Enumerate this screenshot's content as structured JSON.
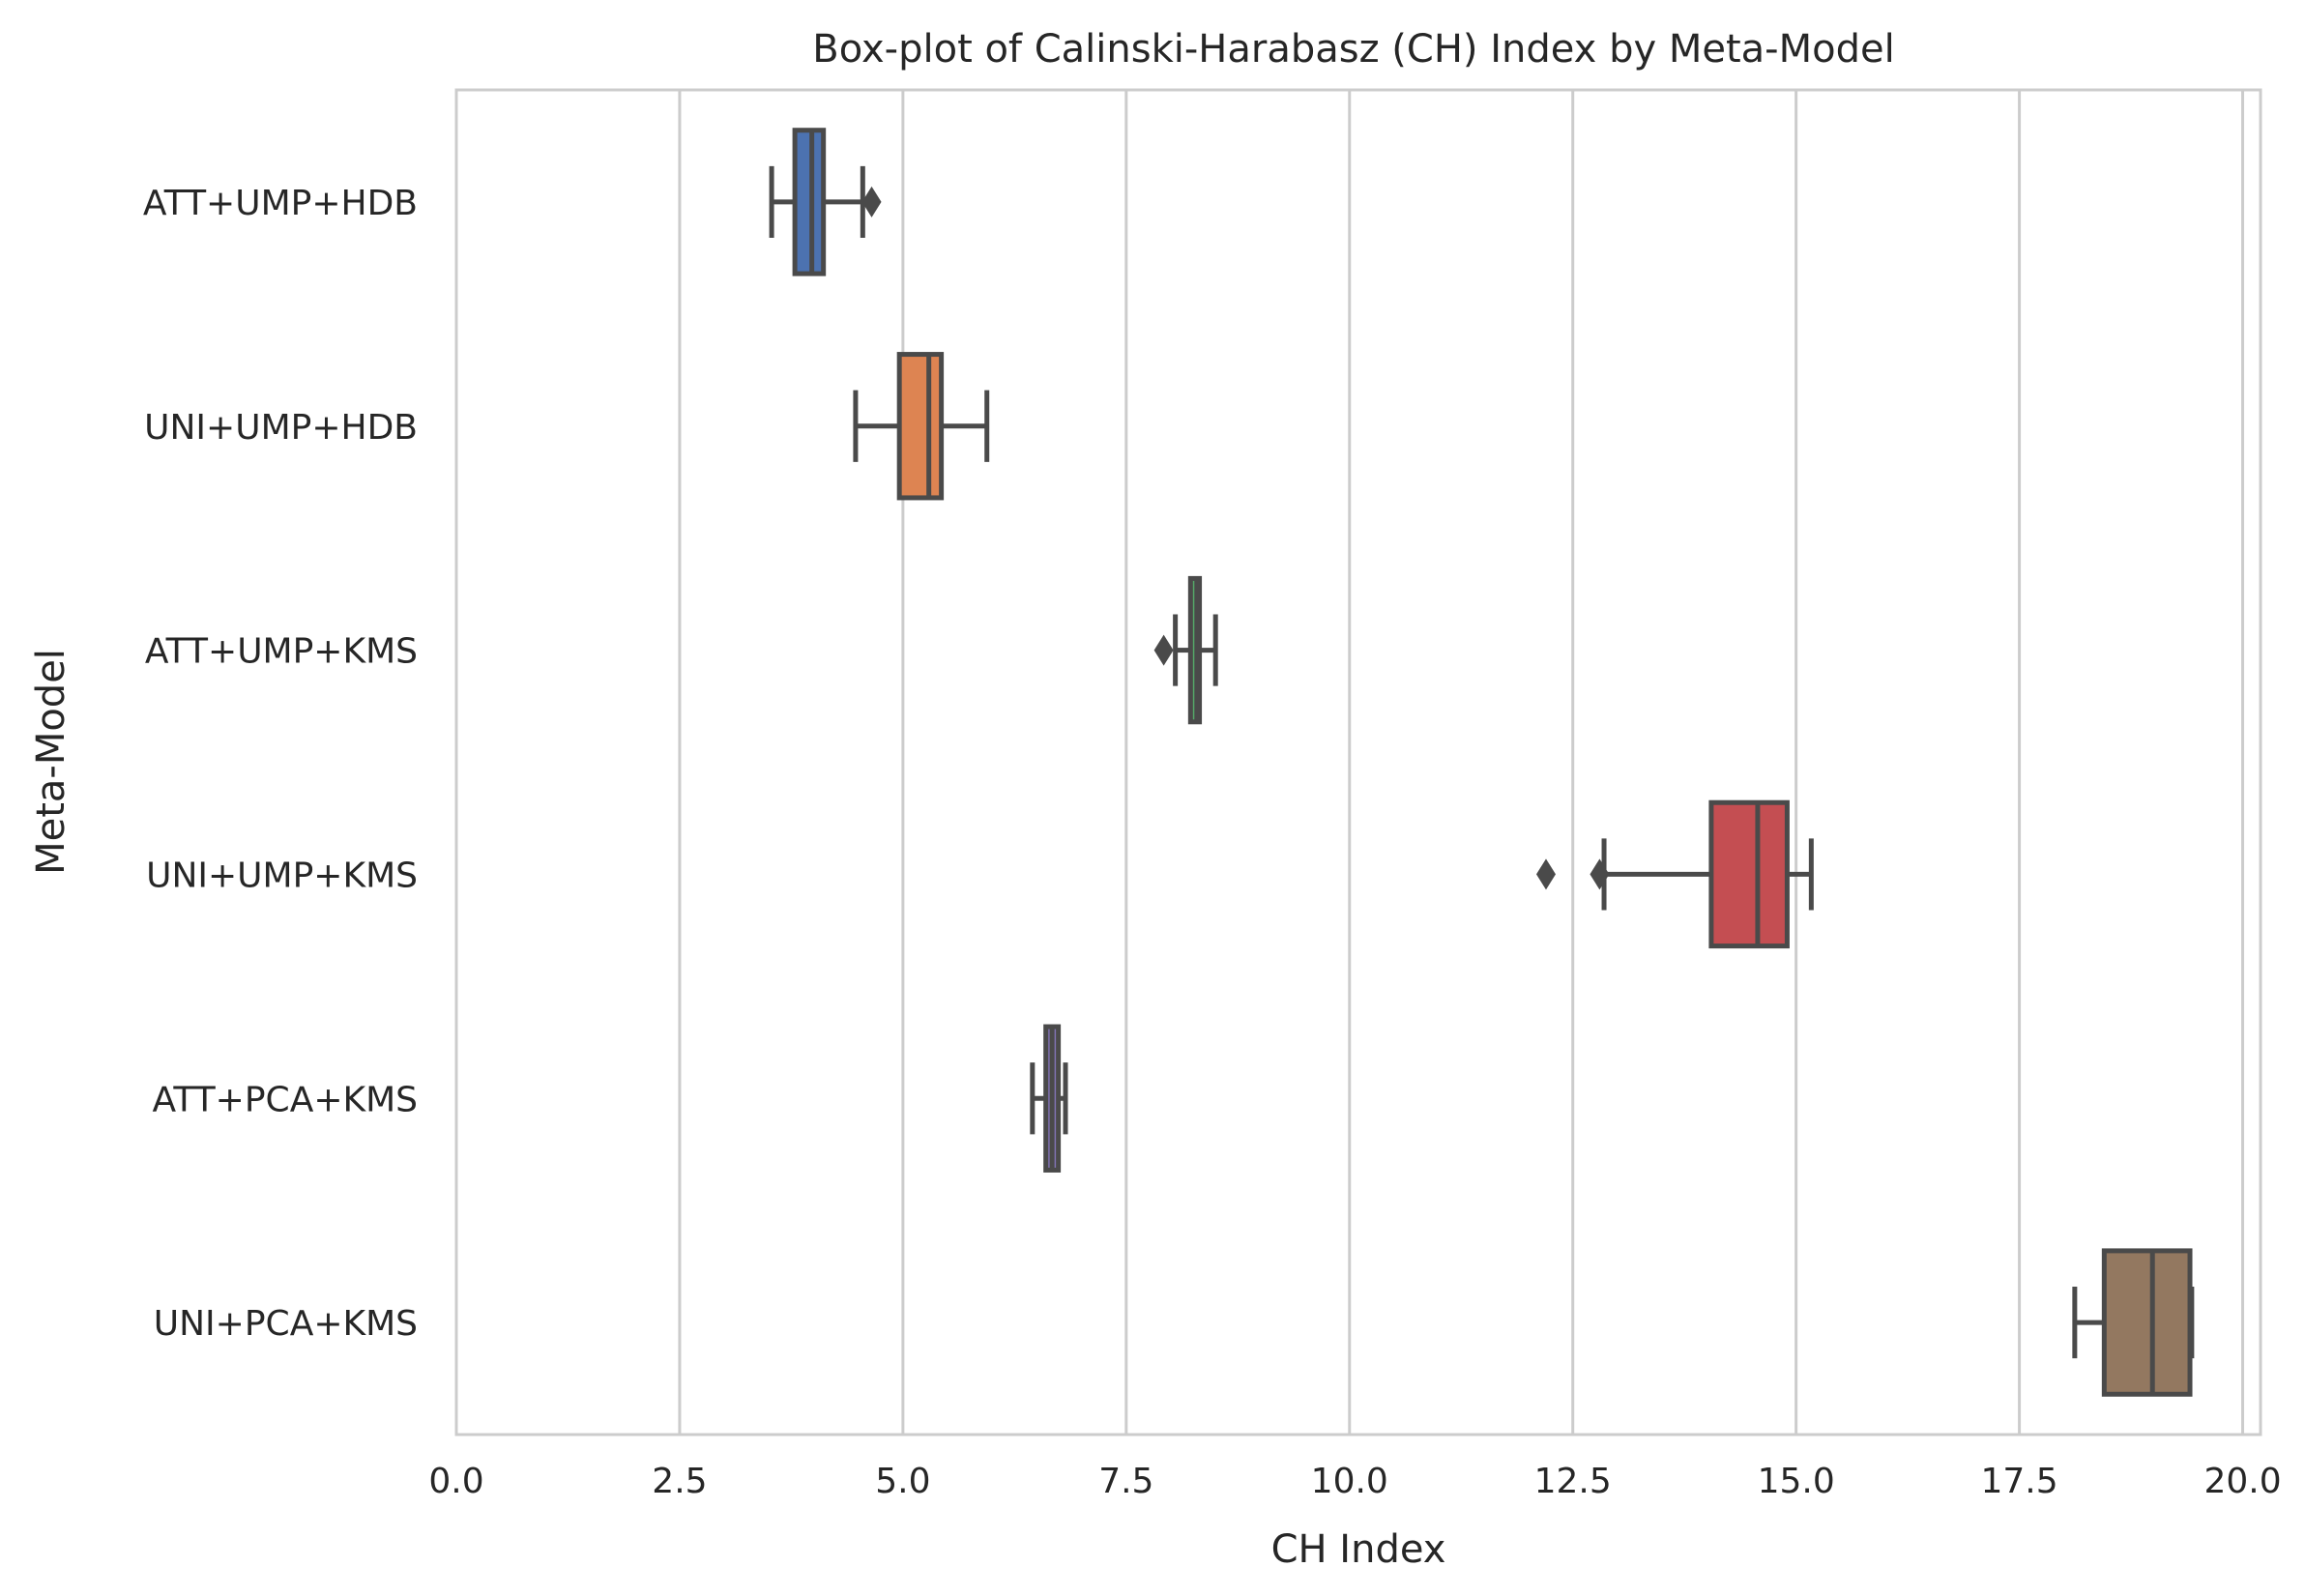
{
  "chart_data": {
    "type": "box",
    "orientation": "horizontal",
    "title": "Box-plot of Calinski-Harabasz (CH) Index by Meta-Model",
    "xlabel": "CH Index",
    "ylabel": "Meta-Model",
    "xlim": [
      0,
      20.2
    ],
    "xticks": [
      0.0,
      2.5,
      5.0,
      7.5,
      10.0,
      12.5,
      15.0,
      17.5,
      20.0
    ],
    "xtick_labels": [
      "0.0",
      "2.5",
      "5.0",
      "7.5",
      "10.0",
      "12.5",
      "15.0",
      "17.5",
      "20.0"
    ],
    "grid": "vertical",
    "categories": [
      "ATT+UMP+HDB",
      "UNI+UMP+HDB",
      "ATT+UMP+KMS",
      "UNI+UMP+KMS",
      "ATT+PCA+KMS",
      "UNI+PCA+KMS"
    ],
    "boxes": [
      {
        "whisker_low": 3.53,
        "q1": 3.79,
        "median": 3.98,
        "q3": 4.11,
        "whisker_high": 4.55,
        "outliers": [
          4.65
        ],
        "color": "#4c72b0"
      },
      {
        "whisker_low": 4.47,
        "q1": 4.96,
        "median": 5.29,
        "q3": 5.43,
        "whisker_high": 5.94,
        "outliers": [],
        "color": "#dd8452"
      },
      {
        "whisker_low": 8.05,
        "q1": 8.22,
        "median": 8.29,
        "q3": 8.32,
        "whisker_high": 8.5,
        "outliers": [
          7.92
        ],
        "color": "#55a868"
      },
      {
        "whisker_low": 12.85,
        "q1": 14.05,
        "median": 14.57,
        "q3": 14.9,
        "whisker_high": 15.17,
        "outliers": [
          12.2,
          12.8
        ],
        "color": "#c44e52"
      },
      {
        "whisker_low": 6.45,
        "q1": 6.6,
        "median": 6.67,
        "q3": 6.74,
        "whisker_high": 6.82,
        "outliers": [],
        "color": "#8172b3"
      },
      {
        "whisker_low": 18.12,
        "q1": 18.45,
        "median": 18.99,
        "q3": 19.41,
        "whisker_high": 19.43,
        "outliers": [],
        "color": "#937860"
      }
    ]
  }
}
